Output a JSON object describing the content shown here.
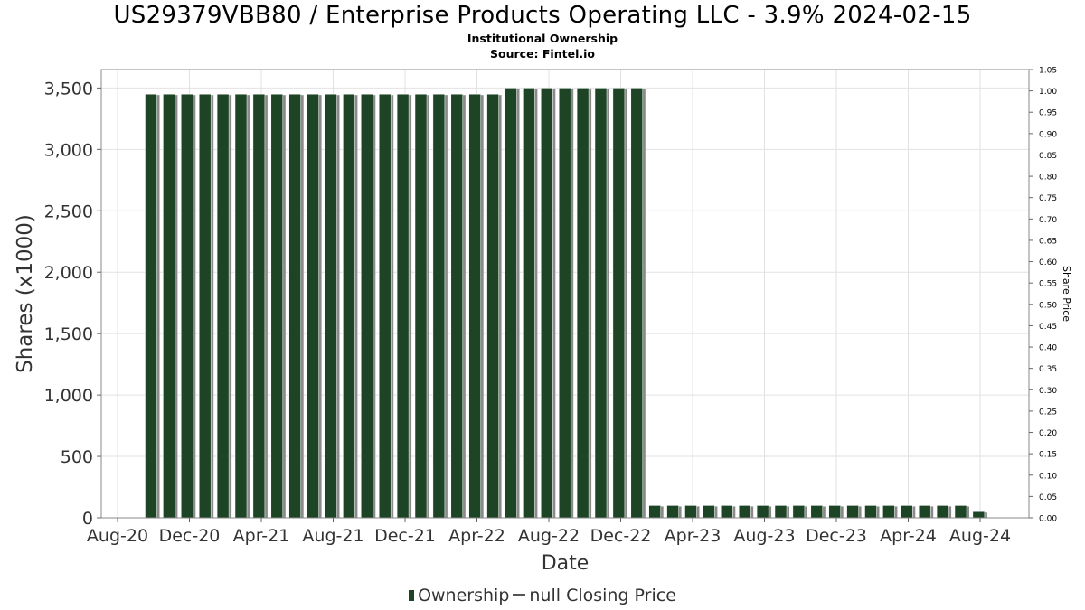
{
  "chart_data": {
    "type": "bar",
    "title": "US29379VBB80 / Enterprise Products Operating LLC - 3.9% 2024-02-15",
    "subtitle": "Institutional Ownership",
    "source": "Source: Fintel.io",
    "xlabel": "Date",
    "ylabel": "Shares (x1000)",
    "y2label": "Share Price",
    "ylim": [
      0,
      3650
    ],
    "y2lim": [
      0,
      1.05
    ],
    "yticks": [
      0,
      500,
      1000,
      1500,
      2000,
      2500,
      3000,
      3500
    ],
    "ytick_labels": [
      "0",
      "500",
      "1,000",
      "1,500",
      "2,000",
      "2,500",
      "3,000",
      "3,500"
    ],
    "y2ticks": [
      "0.00",
      "0.05",
      "0.10",
      "0.15",
      "0.20",
      "0.25",
      "0.30",
      "0.35",
      "0.40",
      "0.45",
      "0.50",
      "0.55",
      "0.60",
      "0.65",
      "0.70",
      "0.75",
      "0.80",
      "0.85",
      "0.90",
      "0.95",
      "1.00",
      "1.05"
    ],
    "xtick_labels": [
      "Aug-20",
      "Dec-20",
      "Apr-21",
      "Aug-21",
      "Dec-21",
      "Apr-22",
      "Aug-22",
      "Dec-22",
      "Apr-23",
      "Aug-23",
      "Dec-23",
      "Apr-24",
      "Aug-24"
    ],
    "grid": true,
    "legend_position": "bottom",
    "series": [
      {
        "name": "Ownership",
        "color": "#1e4426",
        "values": [
          3450,
          3450,
          3450,
          3450,
          3450,
          3450,
          3450,
          3450,
          3450,
          3450,
          3450,
          3450,
          3450,
          3450,
          3450,
          3450,
          3450,
          3450,
          3450,
          3450,
          3500,
          3500,
          3500,
          3500,
          3500,
          3500,
          3500,
          3500,
          100,
          100,
          100,
          100,
          100,
          100,
          100,
          100,
          100,
          100,
          100,
          100,
          100,
          100,
          100,
          100,
          100,
          100,
          50
        ]
      }
    ],
    "legend": {
      "ownership_label": "Ownership",
      "price_label": "null Closing Price"
    }
  }
}
